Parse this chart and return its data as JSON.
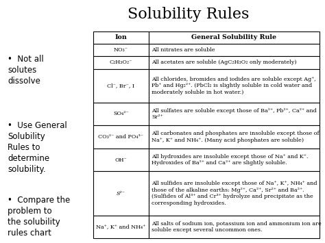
{
  "title": "Solubility Rules",
  "bullets": [
    "Not all\nsolutes\ndissolve",
    "Use General\nSolubility\nRules to\ndetermine\nsolubility.",
    "Compare the\nproblem to\nthe solubility\nrules chart"
  ],
  "table_header": [
    "Ion",
    "General Solubility Rule"
  ],
  "table_rows": [
    [
      "NO₃⁻",
      "All nitrates are soluble"
    ],
    [
      "C₂H₃O₂⁻",
      "All acetates are soluble (AgC₂H₃O₂ only moderately)"
    ],
    [
      "Cl⁻, Br⁻, I",
      "All chlorides, bromides and iodides are soluble except Ag⁺,\nPb⁺ and Hg₂²⁺. (PbCl₂ is slightly soluble in cold water and\nmoderately soluble in hot water.)"
    ],
    [
      "SO₄²⁻",
      "All sulfates are soluble except those of Ba²⁺, Pb²⁺, Ca²⁺ and\nSr²⁺"
    ],
    [
      "CO₃²⁻ and PO₄³⁻",
      "All carbonates and phosphates are insoluble except those of\nNa⁺, K⁺ and NH₄⁺. (Many acid phosphates are soluble)"
    ],
    [
      "OH⁻",
      "All hydroxides are insoluble except those of Na⁺ and K⁺.\nHydroxides of Ba²⁺ and Ca²⁺ are slightly soluble."
    ],
    [
      "S²⁻",
      "All sulfides are insoluble except those of Na⁺, K⁺, NH₄⁺ and\nthose of the alkaline earths: Mg²⁺, Ca²⁺, Sr²⁺ and Ba²⁺.\n(Sulfides of Al³⁺ and Cr³⁺ hydrolyze and precipitate as the\ncorresponding hydroxides."
    ],
    [
      "Na⁺, K⁺ and NH₄⁺",
      "All salts of sodium ion, potassium ion and ammonium ion are\nsoluble except several uncommon ones."
    ]
  ],
  "row_line_counts": [
    1,
    1,
    3,
    2,
    2,
    2,
    4,
    2
  ],
  "bg_color": "#ffffff",
  "text_color": "#000000",
  "title_fontsize": 16,
  "bullet_fontsize": 8.5,
  "table_fontsize": 5.8,
  "header_fontsize": 6.8,
  "ion_italics": [
    false,
    false,
    false,
    false,
    false,
    false,
    true,
    false
  ]
}
